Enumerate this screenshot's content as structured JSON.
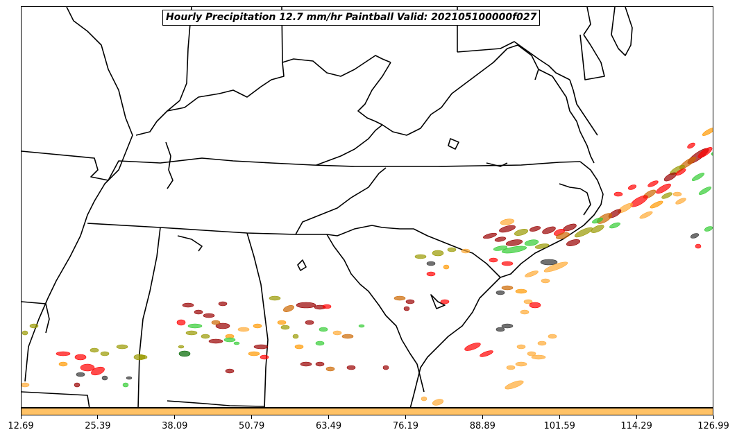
{
  "title": "Hourly Precipitation 12.7 mm/hr Paintball Valid: 202105100000f027",
  "colorbar": {
    "color": "#ffc266",
    "ticks": [
      "12.69",
      "25.39",
      "38.09",
      "50.79",
      "63.49",
      "76.19",
      "88.89",
      "101.59",
      "114.29",
      "126.99"
    ]
  },
  "paintball_colors": [
    "#ff0000",
    "#ff9900",
    "#33cc33",
    "#990000",
    "#999900",
    "#333333",
    "#cc6600",
    "#006600",
    "#ffaa33"
  ]
}
